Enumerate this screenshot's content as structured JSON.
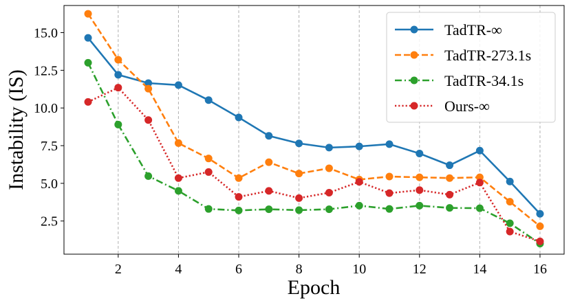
{
  "chart_data": {
    "type": "line",
    "title": "",
    "xlabel": "Epoch",
    "ylabel": "Instability (IS)",
    "x": [
      1,
      2,
      3,
      4,
      5,
      6,
      7,
      8,
      9,
      10,
      11,
      12,
      13,
      14,
      15,
      16
    ],
    "xlim": [
      0.2,
      16.8
    ],
    "ylim": [
      0.3,
      16.8
    ],
    "xticks": [
      2,
      4,
      6,
      8,
      10,
      12,
      14,
      16
    ],
    "yticks": [
      2.5,
      5.0,
      7.5,
      10.0,
      12.5,
      15.0
    ],
    "ytick_labels": [
      "2.5",
      "5.0",
      "7.5",
      "10.0",
      "12.5",
      "15.0"
    ],
    "grid": "vertical-dashed",
    "legend_position": "top-right",
    "series": [
      {
        "name": "TadTR-∞",
        "color": "#1f77b4",
        "style": "solid",
        "values": [
          14.65,
          12.2,
          11.65,
          11.52,
          10.52,
          9.37,
          8.15,
          7.65,
          7.37,
          7.45,
          7.6,
          6.98,
          6.2,
          7.17,
          5.12,
          2.98
        ]
      },
      {
        "name": "TadTR-273.1s",
        "color": "#ff7f0e",
        "style": "dashed",
        "values": [
          16.25,
          13.2,
          11.28,
          7.67,
          6.65,
          5.35,
          6.4,
          5.65,
          6.0,
          5.25,
          5.45,
          5.4,
          5.35,
          5.4,
          3.78,
          2.15
        ]
      },
      {
        "name": "TadTR-34.1s",
        "color": "#2ca02c",
        "style": "dashdot",
        "values": [
          13.0,
          8.9,
          5.48,
          4.5,
          3.3,
          3.2,
          3.28,
          3.22,
          3.28,
          3.52,
          3.3,
          3.52,
          3.37,
          3.35,
          2.35,
          1.0
        ]
      },
      {
        "name": "Ours-∞",
        "color": "#d62728",
        "style": "dotted",
        "values": [
          10.4,
          11.35,
          9.2,
          5.35,
          5.75,
          4.1,
          4.5,
          4.02,
          4.38,
          5.1,
          4.35,
          4.55,
          4.25,
          5.05,
          1.8,
          1.15
        ]
      }
    ]
  }
}
